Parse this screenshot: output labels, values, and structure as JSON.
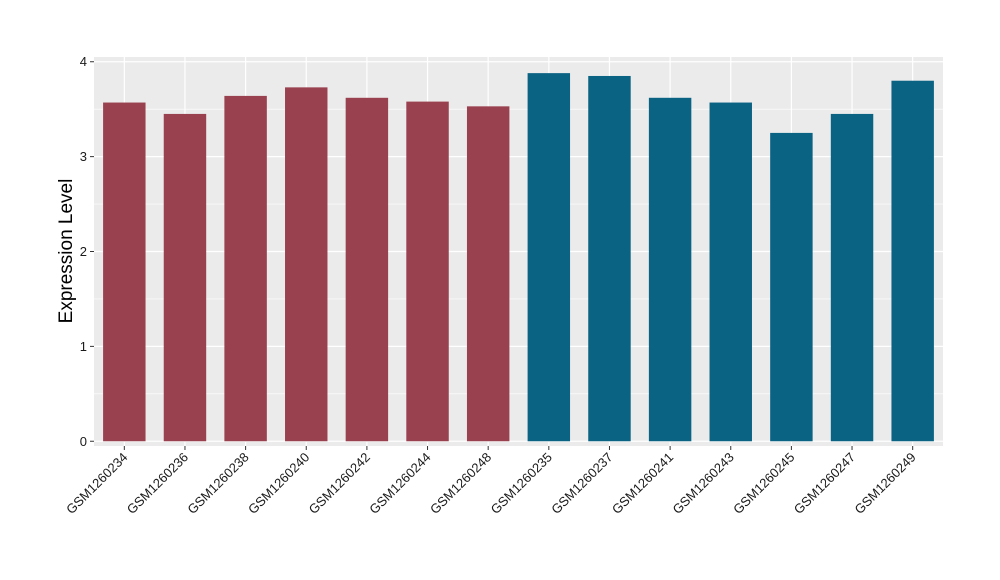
{
  "chart_data": {
    "type": "bar",
    "title": "",
    "xlabel": "",
    "ylabel": "Expression Level",
    "ylim": [
      -0.05,
      4.05
    ],
    "yticks": [
      0,
      1,
      2,
      3,
      4
    ],
    "grid": true,
    "categories": [
      "GSM1260234",
      "GSM1260236",
      "GSM1260238",
      "GSM1260240",
      "GSM1260242",
      "GSM1260244",
      "GSM1260248",
      "GSM1260235",
      "GSM1260237",
      "GSM1260241",
      "GSM1260243",
      "GSM1260245",
      "GSM1260247",
      "GSM1260249"
    ],
    "values": [
      3.57,
      3.45,
      3.64,
      3.73,
      3.62,
      3.58,
      3.53,
      3.88,
      3.85,
      3.62,
      3.57,
      3.25,
      3.45,
      3.8
    ],
    "groups": [
      0,
      0,
      0,
      0,
      0,
      0,
      0,
      1,
      1,
      1,
      1,
      1,
      1,
      1
    ],
    "group_colors": [
      "#9a414f",
      "#0b6384"
    ],
    "panel_color": "#ebebeb",
    "grid_color": "#ffffff"
  }
}
